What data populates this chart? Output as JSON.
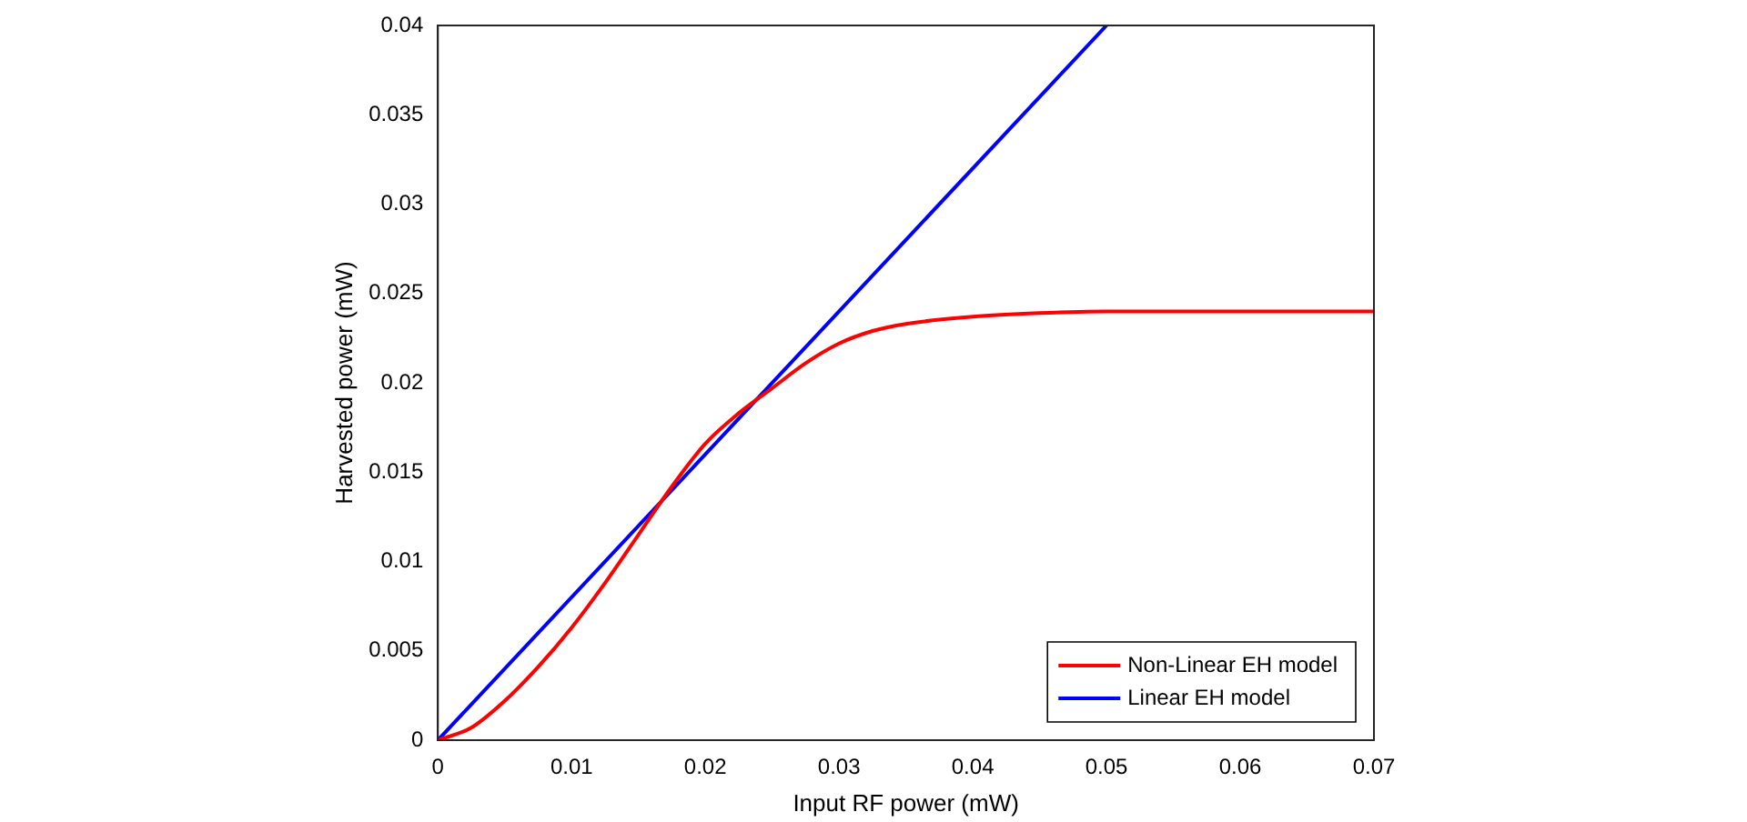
{
  "chart_data": {
    "type": "line",
    "xlabel": "Input RF power (mW)",
    "ylabel": "Harvested power (mW)",
    "xlim": [
      0,
      0.07
    ],
    "xticks": [
      0,
      0.01,
      0.02,
      0.03,
      0.04,
      0.05,
      0.06,
      0.07
    ],
    "ylim": [
      0,
      0.04
    ],
    "yticks": [
      0,
      0.005,
      0.01,
      0.015,
      0.02,
      0.025,
      0.03,
      0.035,
      0.04
    ],
    "grid": false,
    "legend": "bottom right",
    "marker": "none",
    "line_style": "solid",
    "series": [
      {
        "name": "Non-Linear EH model",
        "color": "#ff0000",
        "x": [
          0,
          0.0025,
          0.005,
          0.0075,
          0.01,
          0.0125,
          0.015,
          0.0175,
          0.02,
          0.0225,
          0.025,
          0.0275,
          0.03,
          0.0325,
          0.035,
          0.04,
          0.045,
          0.05,
          0.06,
          0.07
        ],
        "values": [
          0,
          0.0007,
          0.0022,
          0.0041,
          0.0063,
          0.0088,
          0.0115,
          0.0142,
          0.0166,
          0.0183,
          0.0197,
          0.0211,
          0.0222,
          0.0229,
          0.0233,
          0.0237,
          0.0239,
          0.024,
          0.024,
          0.024
        ]
      },
      {
        "name": "Linear EH model",
        "color": "#0000ff",
        "x": [
          0,
          0.05
        ],
        "values": [
          0,
          0.04
        ]
      }
    ]
  }
}
